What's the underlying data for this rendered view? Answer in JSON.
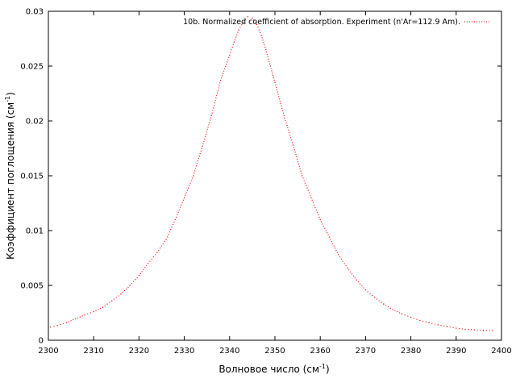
{
  "chart_data": {
    "type": "scatter",
    "xlabel": "Волновое число (см",
    "xlabel_sup": "-1",
    "xlabel_tail": ")",
    "ylabel": "Коэффициент поглощения (см",
    "ylabel_sup": "-1",
    "ylabel_tail": ")",
    "xlim": [
      2300,
      2400
    ],
    "ylim": [
      0,
      0.03
    ],
    "x_ticks": [
      "2300",
      "2310",
      "2320",
      "2330",
      "2340",
      "2350",
      "2360",
      "2370",
      "2380",
      "2390",
      "2400"
    ],
    "y_ticks": [
      "0",
      "0.005",
      "0.01",
      "0.015",
      "0.02",
      "0.025",
      "0.03"
    ],
    "grid": false,
    "legend_position": "top-right",
    "series": [
      {
        "name": "10b. Normalized coefficient of absorption. Experiment (n'Ar=112.9 Am).",
        "color": "#ff0000",
        "style": "dotted",
        "points": [
          [
            2300.5,
            0.0012
          ],
          [
            2302,
            0.00135
          ],
          [
            2304,
            0.0016
          ],
          [
            2306,
            0.00195
          ],
          [
            2308,
            0.0023
          ],
          [
            2310,
            0.0026
          ],
          [
            2312,
            0.003
          ],
          [
            2314,
            0.0036
          ],
          [
            2316,
            0.0042
          ],
          [
            2318,
            0.005
          ],
          [
            2320,
            0.0059
          ],
          [
            2322,
            0.007
          ],
          [
            2324,
            0.008
          ],
          [
            2326,
            0.0092
          ],
          [
            2328,
            0.011
          ],
          [
            2330,
            0.013
          ],
          [
            2332,
            0.015
          ],
          [
            2334,
            0.0177
          ],
          [
            2336,
            0.0205
          ],
          [
            2338,
            0.0237
          ],
          [
            2340,
            0.026
          ],
          [
            2341,
            0.0272
          ],
          [
            2342,
            0.0283
          ],
          [
            2343,
            0.029
          ],
          [
            2344,
            0.0295
          ],
          [
            2345,
            0.0294
          ],
          [
            2346,
            0.0288
          ],
          [
            2347,
            0.0278
          ],
          [
            2348,
            0.0265
          ],
          [
            2350,
            0.0235
          ],
          [
            2352,
            0.0205
          ],
          [
            2354,
            0.0178
          ],
          [
            2356,
            0.015
          ],
          [
            2358,
            0.013
          ],
          [
            2360,
            0.011
          ],
          [
            2362,
            0.0094
          ],
          [
            2364,
            0.0078
          ],
          [
            2366,
            0.0066
          ],
          [
            2368,
            0.0055
          ],
          [
            2370,
            0.0046
          ],
          [
            2372,
            0.0039
          ],
          [
            2374,
            0.0033
          ],
          [
            2376,
            0.0028
          ],
          [
            2378,
            0.0024
          ],
          [
            2380,
            0.0021
          ],
          [
            2382,
            0.0018
          ],
          [
            2384,
            0.0016
          ],
          [
            2386,
            0.0014
          ],
          [
            2388,
            0.00125
          ],
          [
            2390,
            0.0011
          ],
          [
            2392,
            0.001
          ],
          [
            2394,
            0.00095
          ],
          [
            2396,
            0.0009
          ],
          [
            2398,
            0.00088
          ]
        ]
      }
    ]
  }
}
